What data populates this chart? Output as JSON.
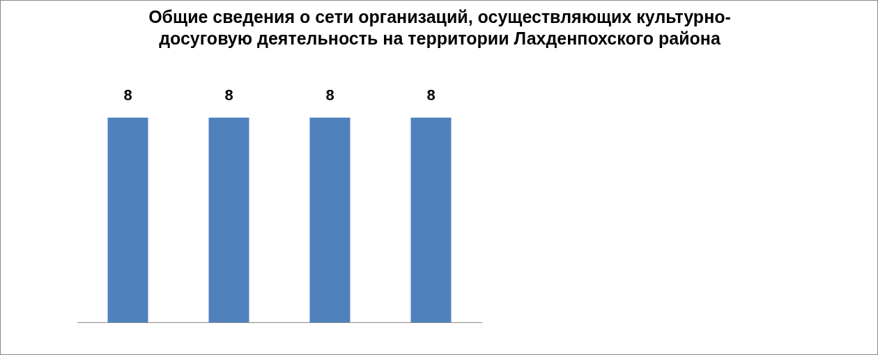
{
  "chart_data": {
    "type": "bar",
    "title": "Общие сведения о сети организаций, осуществляющих культурно-досуговую деятельность на территории Лахденпохского района",
    "categories": [
      null,
      null,
      null,
      null
    ],
    "values": [
      8,
      8,
      8,
      8
    ],
    "color": "#4f81bd",
    "data_labels": true
  }
}
